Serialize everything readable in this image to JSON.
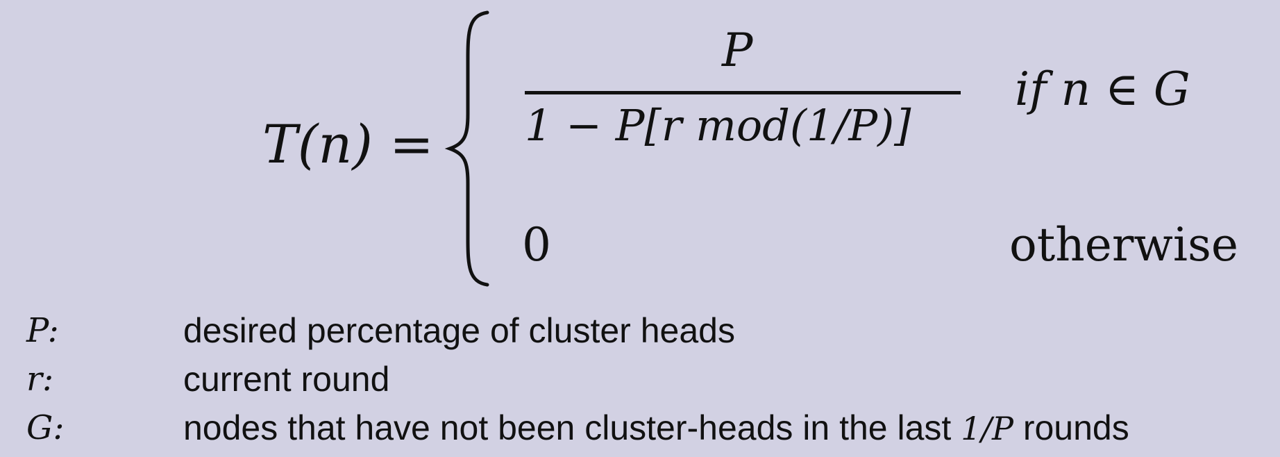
{
  "formula": {
    "lhs": "T(n) =",
    "numerator": "P",
    "denominator": "1 − P[r mod(1/P)]",
    "condition_1": "if n  ∈ G",
    "value_2": "0",
    "condition_2": "otherwise"
  },
  "legend": [
    {
      "symbol": "P:",
      "description": "desired percentage of cluster heads"
    },
    {
      "symbol": "r:",
      "description": "current round"
    },
    {
      "symbol": "G:",
      "description_before": "nodes that have not been cluster-heads in the last ",
      "description_inline_math": "1/P",
      "description_after": " rounds"
    }
  ]
}
